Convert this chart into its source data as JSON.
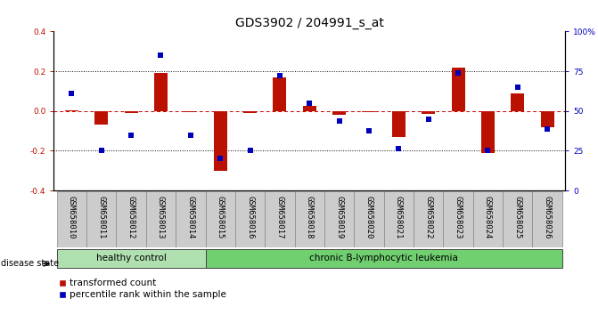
{
  "title": "GDS3902 / 204991_s_at",
  "samples": [
    "GSM658010",
    "GSM658011",
    "GSM658012",
    "GSM658013",
    "GSM658014",
    "GSM658015",
    "GSM658016",
    "GSM658017",
    "GSM658018",
    "GSM658019",
    "GSM658020",
    "GSM658021",
    "GSM658022",
    "GSM658023",
    "GSM658024",
    "GSM658025",
    "GSM658026"
  ],
  "red_bars": [
    0.005,
    -0.07,
    -0.01,
    0.19,
    -0.005,
    -0.3,
    -0.01,
    0.17,
    0.025,
    -0.02,
    -0.005,
    -0.13,
    -0.015,
    0.22,
    -0.21,
    0.09,
    -0.08
  ],
  "blue_dots": [
    0.09,
    -0.2,
    -0.12,
    0.28,
    -0.12,
    -0.24,
    -0.2,
    0.18,
    0.04,
    -0.05,
    -0.1,
    -0.19,
    -0.04,
    0.19,
    -0.2,
    0.12,
    -0.09
  ],
  "group_labels": [
    "healthy control",
    "chronic B-lymphocytic leukemia"
  ],
  "group_break": 5,
  "group_color_left": "#b0e0b0",
  "group_color_right": "#70d070",
  "disease_state_label": "disease state",
  "legend_red": "transformed count",
  "legend_blue": "percentile rank within the sample",
  "ylim": [
    -0.4,
    0.4
  ],
  "yticks_left": [
    -0.4,
    -0.2,
    0.0,
    0.2,
    0.4
  ],
  "yticks_right": [
    0,
    25,
    50,
    75,
    100
  ],
  "hlines_dotted": [
    -0.2,
    0.2
  ],
  "hline_zero": 0.0,
  "bar_color": "#bb1100",
  "dot_color": "#0000bb",
  "bg_color": "#ffffff",
  "plot_bg": "#ffffff",
  "zero_line_color": "#cc0000",
  "tick_label_fontsize": 6.5,
  "title_fontsize": 10,
  "bar_width": 0.45,
  "xtick_bg_color": "#cccccc",
  "xtick_border_color": "#888888"
}
